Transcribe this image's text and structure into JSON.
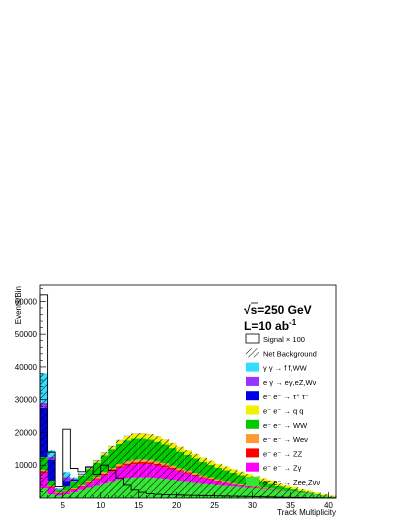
{
  "chart_data": {
    "type": "bar",
    "stacked": true,
    "xlabel": "Track Multiplicity",
    "ylabel": "Events/Bin",
    "xlim": [
      2,
      41
    ],
    "ylim": [
      0,
      65000
    ],
    "x_ticks": [
      5,
      10,
      15,
      20,
      25,
      30,
      35,
      40
    ],
    "y_ticks": [
      10000,
      20000,
      30000,
      40000,
      50000,
      60000
    ],
    "x_tick_labels": [
      "5",
      "10",
      "15",
      "20",
      "25",
      "30",
      "35",
      "40"
    ],
    "y_tick_labels": [
      "10000",
      "20000",
      "30000",
      "40000",
      "50000",
      "60000"
    ],
    "annotation": {
      "line1_root": "√",
      "line1_text": "s=250 GeV",
      "line2_text": "L=10 ab",
      "line2_sup": "-1"
    },
    "legend_position": "top-right",
    "bins": [
      2,
      3,
      4,
      5,
      6,
      7,
      8,
      9,
      10,
      11,
      12,
      13,
      14,
      15,
      16,
      17,
      18,
      19,
      20,
      21,
      22,
      23,
      24,
      25,
      26,
      27,
      28,
      29,
      30,
      31,
      32,
      33,
      34,
      35,
      36,
      37,
      38,
      39,
      40
    ],
    "background_series": [
      {
        "name": "e⁻ e⁻ → Zee,Zνν",
        "color": "#33e633",
        "values": [
          3000,
          1200,
          800,
          1200,
          1800,
          2500,
          3200,
          3800,
          4500,
          5000,
          5600,
          6000,
          6200,
          6200,
          6200,
          6000,
          5800,
          5500,
          5200,
          5000,
          4700,
          4400,
          4200,
          4000,
          3800,
          3600,
          3400,
          3200,
          3000,
          2800,
          2600,
          2300,
          2000,
          1800,
          1500,
          1300,
          1000,
          700,
          400
        ]
      },
      {
        "name": "e⁻ e⁻ → Zγ",
        "color": "#ff00ff",
        "values": [
          4500,
          2000,
          600,
          600,
          700,
          900,
          1300,
          1800,
          2400,
          3000,
          3500,
          3900,
          4100,
          4200,
          4100,
          3900,
          3600,
          3200,
          2800,
          2400,
          2000,
          1600,
          1300,
          1000,
          800,
          600,
          450,
          350,
          250,
          200,
          150,
          100,
          80,
          60,
          40,
          30,
          20,
          10,
          5
        ]
      },
      {
        "name": "e⁻ e⁻ → ZZ",
        "color": "#ff0000",
        "values": [
          600,
          300,
          150,
          200,
          250,
          300,
          350,
          400,
          450,
          500,
          550,
          580,
          600,
          600,
          580,
          550,
          520,
          480,
          440,
          400,
          360,
          320,
          280,
          240,
          200,
          170,
          140,
          110,
          90,
          70,
          50,
          40,
          30,
          20,
          15,
          10,
          8,
          5,
          3
        ]
      },
      {
        "name": "e⁻ e⁻ → Weν",
        "color": "#ff9933",
        "values": [
          400,
          200,
          150,
          200,
          250,
          300,
          350,
          400,
          500,
          600,
          700,
          750,
          800,
          800,
          780,
          740,
          700,
          650,
          600,
          550,
          500,
          450,
          400,
          350,
          300,
          260,
          220,
          180,
          150,
          120,
          100,
          80,
          60,
          45,
          30,
          20,
          15,
          10,
          5
        ]
      },
      {
        "name": "e⁻ e⁻ → WW",
        "color": "#00cc00",
        "values": [
          4000,
          1500,
          800,
          1300,
          2000,
          2800,
          3600,
          4400,
          5200,
          5800,
          6200,
          6400,
          6500,
          6400,
          6200,
          6000,
          5700,
          5400,
          5100,
          4800,
          4500,
          4200,
          3900,
          3600,
          3300,
          3000,
          2700,
          2400,
          2100,
          1800,
          1500,
          1200,
          1000,
          800,
          600,
          400,
          250,
          150,
          80
        ]
      },
      {
        "name": "e⁻ e⁻ → q q",
        "color": "#f2f200",
        "values": [
          0,
          0,
          0,
          50,
          100,
          200,
          300,
          500,
          700,
          900,
          1100,
          1300,
          1450,
          1550,
          1600,
          1600,
          1580,
          1550,
          1500,
          1450,
          1400,
          1350,
          1300,
          1250,
          1200,
          1150,
          1100,
          1050,
          1000,
          950,
          880,
          800,
          720,
          650,
          580,
          500,
          420,
          340,
          260
        ]
      },
      {
        "name": "e⁻ e⁻ → τ⁺ τ⁻",
        "color": "#0000e6",
        "values": [
          15000,
          6500,
          0,
          1600,
          400,
          100,
          50,
          30,
          20,
          10,
          10,
          10,
          0,
          0,
          0,
          0,
          0,
          0,
          0,
          0,
          0,
          0,
          0,
          0,
          0,
          0,
          0,
          0,
          0,
          0,
          0,
          0,
          0,
          0,
          0,
          0,
          0,
          0,
          0
        ]
      },
      {
        "name": "e γ → eγ,eZ,Wν",
        "color": "#9933ff",
        "values": [
          1500,
          800,
          200,
          1200,
          300,
          200,
          150,
          120,
          100,
          80,
          60,
          50,
          40,
          30,
          25,
          20,
          15,
          12,
          10,
          8,
          6,
          5,
          4,
          3,
          2,
          2,
          1,
          1,
          1,
          1,
          0,
          0,
          0,
          0,
          0,
          0,
          0,
          0,
          0
        ]
      },
      {
        "name": "γ γ → f f,WW",
        "color": "#33ddff",
        "values": [
          9000,
          2000,
          300,
          1500,
          400,
          200,
          100,
          80,
          60,
          50,
          40,
          30,
          25,
          20,
          15,
          10,
          8,
          6,
          5,
          4,
          3,
          2,
          1,
          1,
          1,
          0,
          0,
          0,
          0,
          0,
          0,
          0,
          0,
          0,
          0,
          0,
          0,
          0,
          0
        ]
      }
    ],
    "signal_series": {
      "name": "Signal × 100",
      "color": "#000000",
      "values": [
        62000,
        14000,
        3500,
        21000,
        9000,
        8000,
        9500,
        7200,
        10000,
        8500,
        6000,
        4000,
        2500,
        1800,
        1400,
        1200,
        1100,
        1000,
        950,
        900,
        850,
        800,
        750,
        700,
        650,
        600,
        550,
        500,
        450,
        400,
        350,
        300,
        250,
        200,
        150,
        100,
        80,
        60,
        40
      ]
    },
    "net_background_label": "Net Background",
    "legend_entries": [
      {
        "label": "Signal × 100",
        "style": "outline"
      },
      {
        "label": "Net Background",
        "style": "hatch"
      },
      {
        "label": "γ γ → f f,WW",
        "color": "#33ddff"
      },
      {
        "label": "e γ → eγ,eZ,Wν",
        "color": "#9933ff"
      },
      {
        "label": "e⁻ e⁻ → τ⁺ τ⁻",
        "color": "#0000e6"
      },
      {
        "label": "e⁻ e⁻ → q q",
        "color": "#f2f200"
      },
      {
        "label": "e⁻ e⁻ → WW",
        "color": "#00cc00"
      },
      {
        "label": "e⁻ e⁻ → Weν",
        "color": "#ff9933"
      },
      {
        "label": "e⁻ e⁻ → ZZ",
        "color": "#ff0000"
      },
      {
        "label": "e⁻ e⁻ → Zγ",
        "color": "#ff00ff"
      },
      {
        "label": "e⁻ e⁻ → Zee,Zνν",
        "color": "#33e633"
      }
    ]
  }
}
